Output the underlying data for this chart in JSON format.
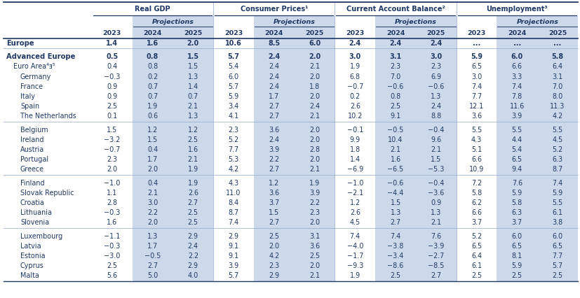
{
  "groups": [
    {
      "name": "Real GDP",
      "start": 0,
      "end": 2
    },
    {
      "name": "Consumer Prices¹",
      "start": 3,
      "end": 5
    },
    {
      "name": "Current Account Balance²",
      "start": 6,
      "end": 8
    },
    {
      "name": "Unemployment³",
      "start": 9,
      "end": 11
    }
  ],
  "rows": [
    {
      "name": "Europe",
      "bold": true,
      "indent": 0,
      "values": [
        "1.4",
        "1.6",
        "2.0",
        "10.6",
        "8.5",
        "6.0",
        "2.4",
        "2.4",
        "2.4",
        "...",
        "...",
        "..."
      ],
      "sep_after": true
    },
    {
      "name": "Advanced Europe",
      "bold": true,
      "indent": 0,
      "values": [
        "0.5",
        "0.8",
        "1.5",
        "5.7",
        "2.4",
        "2.0",
        "3.0",
        "3.1",
        "3.0",
        "5.9",
        "6.0",
        "5.8"
      ],
      "sep_after": false
    },
    {
      "name": "Euro Area⁴ⱻ⁵",
      "bold": false,
      "indent": 1,
      "values": [
        "0.4",
        "0.8",
        "1.5",
        "5.4",
        "2.4",
        "2.1",
        "1.9",
        "2.3",
        "2.3",
        "6.5",
        "6.6",
        "6.4"
      ],
      "sep_after": false
    },
    {
      "name": "Germany",
      "bold": false,
      "indent": 2,
      "values": [
        "−0.3",
        "0.2",
        "1.3",
        "6.0",
        "2.4",
        "2.0",
        "6.8",
        "7.0",
        "6.9",
        "3.0",
        "3.3",
        "3.1"
      ],
      "sep_after": false
    },
    {
      "name": "France",
      "bold": false,
      "indent": 2,
      "values": [
        "0.9",
        "0.7",
        "1.4",
        "5.7",
        "2.4",
        "1.8",
        "−0.7",
        "−0.6",
        "−0.6",
        "7.4",
        "7.4",
        "7.0"
      ],
      "sep_after": false
    },
    {
      "name": "Italy",
      "bold": false,
      "indent": 2,
      "values": [
        "0.9",
        "0.7",
        "0.7",
        "5.9",
        "1.7",
        "2.0",
        "0.2",
        "0.8",
        "1.3",
        "7.7",
        "7.8",
        "8.0"
      ],
      "sep_after": false
    },
    {
      "name": "Spain",
      "bold": false,
      "indent": 2,
      "values": [
        "2.5",
        "1.9",
        "2.1",
        "3.4",
        "2.7",
        "2.4",
        "2.6",
        "2.5",
        "2.4",
        "12.1",
        "11.6",
        "11.3"
      ],
      "sep_after": false
    },
    {
      "name": "The Netherlands",
      "bold": false,
      "indent": 2,
      "values": [
        "0.1",
        "0.6",
        "1.3",
        "4.1",
        "2.7",
        "2.1",
        "10.2",
        "9.1",
        "8.8",
        "3.6",
        "3.9",
        "4.2"
      ],
      "sep_after": true
    },
    {
      "name": "Belgium",
      "bold": false,
      "indent": 2,
      "values": [
        "1.5",
        "1.2",
        "1.2",
        "2.3",
        "3.6",
        "2.0",
        "−0.1",
        "−0.5",
        "−0.4",
        "5.5",
        "5.5",
        "5.5"
      ],
      "sep_after": false
    },
    {
      "name": "Ireland",
      "bold": false,
      "indent": 2,
      "values": [
        "−3.2",
        "1.5",
        "2.5",
        "5.2",
        "2.4",
        "2.0",
        "9.9",
        "10.4",
        "9.6",
        "4.3",
        "4.4",
        "4.5"
      ],
      "sep_after": false
    },
    {
      "name": "Austria",
      "bold": false,
      "indent": 2,
      "values": [
        "−0.7",
        "0.4",
        "1.6",
        "7.7",
        "3.9",
        "2.8",
        "1.8",
        "2.1",
        "2.1",
        "5.1",
        "5.4",
        "5.2"
      ],
      "sep_after": false
    },
    {
      "name": "Portugal",
      "bold": false,
      "indent": 2,
      "values": [
        "2.3",
        "1.7",
        "2.1",
        "5.3",
        "2.2",
        "2.0",
        "1.4",
        "1.6",
        "1.5",
        "6.6",
        "6.5",
        "6.3"
      ],
      "sep_after": false
    },
    {
      "name": "Greece",
      "bold": false,
      "indent": 2,
      "values": [
        "2.0",
        "2.0",
        "1.9",
        "4.2",
        "2.7",
        "2.1",
        "−6.9",
        "−6.5",
        "−5.3",
        "10.9",
        "9.4",
        "8.7"
      ],
      "sep_after": true
    },
    {
      "name": "Finland",
      "bold": false,
      "indent": 2,
      "values": [
        "−1.0",
        "0.4",
        "1.9",
        "4.3",
        "1.2",
        "1.9",
        "−1.0",
        "−0.6",
        "−0.4",
        "7.2",
        "7.6",
        "7.4"
      ],
      "sep_after": false
    },
    {
      "name": "Slovak Republic",
      "bold": false,
      "indent": 2,
      "values": [
        "1.1",
        "2.1",
        "2.6",
        "11.0",
        "3.6",
        "3.9",
        "−2.1",
        "−4.4",
        "−3.6",
        "5.8",
        "5.9",
        "5.9"
      ],
      "sep_after": false
    },
    {
      "name": "Croatia",
      "bold": false,
      "indent": 2,
      "values": [
        "2.8",
        "3.0",
        "2.7",
        "8.4",
        "3.7",
        "2.2",
        "1.2",
        "1.5",
        "0.9",
        "6.2",
        "5.8",
        "5.5"
      ],
      "sep_after": false
    },
    {
      "name": "Lithuania",
      "bold": false,
      "indent": 2,
      "values": [
        "−0.3",
        "2.2",
        "2.5",
        "8.7",
        "1.5",
        "2.3",
        "2.6",
        "1.3",
        "1.3",
        "6.6",
        "6.3",
        "6.1"
      ],
      "sep_after": false
    },
    {
      "name": "Slovenia",
      "bold": false,
      "indent": 2,
      "values": [
        "1.6",
        "2.0",
        "2.5",
        "7.4",
        "2.7",
        "2.0",
        "4.5",
        "2.7",
        "2.1",
        "3.7",
        "3.7",
        "3.8"
      ],
      "sep_after": true
    },
    {
      "name": "Luxembourg",
      "bold": false,
      "indent": 2,
      "values": [
        "−1.1",
        "1.3",
        "2.9",
        "2.9",
        "2.5",
        "3.1",
        "7.4",
        "7.4",
        "7.6",
        "5.2",
        "6.0",
        "6.0"
      ],
      "sep_after": false
    },
    {
      "name": "Latvia",
      "bold": false,
      "indent": 2,
      "values": [
        "−0.3",
        "1.7",
        "2.4",
        "9.1",
        "2.0",
        "3.6",
        "−4.0",
        "−3.8",
        "−3.9",
        "6.5",
        "6.5",
        "6.5"
      ],
      "sep_after": false
    },
    {
      "name": "Estonia",
      "bold": false,
      "indent": 2,
      "values": [
        "−3.0",
        "−0.5",
        "2.2",
        "9.1",
        "4.2",
        "2.5",
        "−1.7",
        "−3.4",
        "−2.7",
        "6.4",
        "8.1",
        "7.7"
      ],
      "sep_after": false
    },
    {
      "name": "Cyprus",
      "bold": false,
      "indent": 2,
      "values": [
        "2.5",
        "2.7",
        "2.9",
        "3.9",
        "2.3",
        "2.0",
        "−9.3",
        "−8.6",
        "−8.5",
        "6.1",
        "5.9",
        "5.7"
      ],
      "sep_after": false
    },
    {
      "name": "Malta",
      "bold": false,
      "indent": 2,
      "values": [
        "5.6",
        "5.0",
        "4.0",
        "5.7",
        "2.9",
        "2.1",
        "1.9",
        "2.5",
        "2.7",
        "2.5",
        "2.5",
        "2.5"
      ],
      "sep_after": false
    }
  ],
  "bg_proj": "#cdd9ea",
  "bg_white": "#ffffff",
  "text_color": "#1f3864",
  "sep_color": "#8eaacc",
  "border_color": "#1f3864"
}
